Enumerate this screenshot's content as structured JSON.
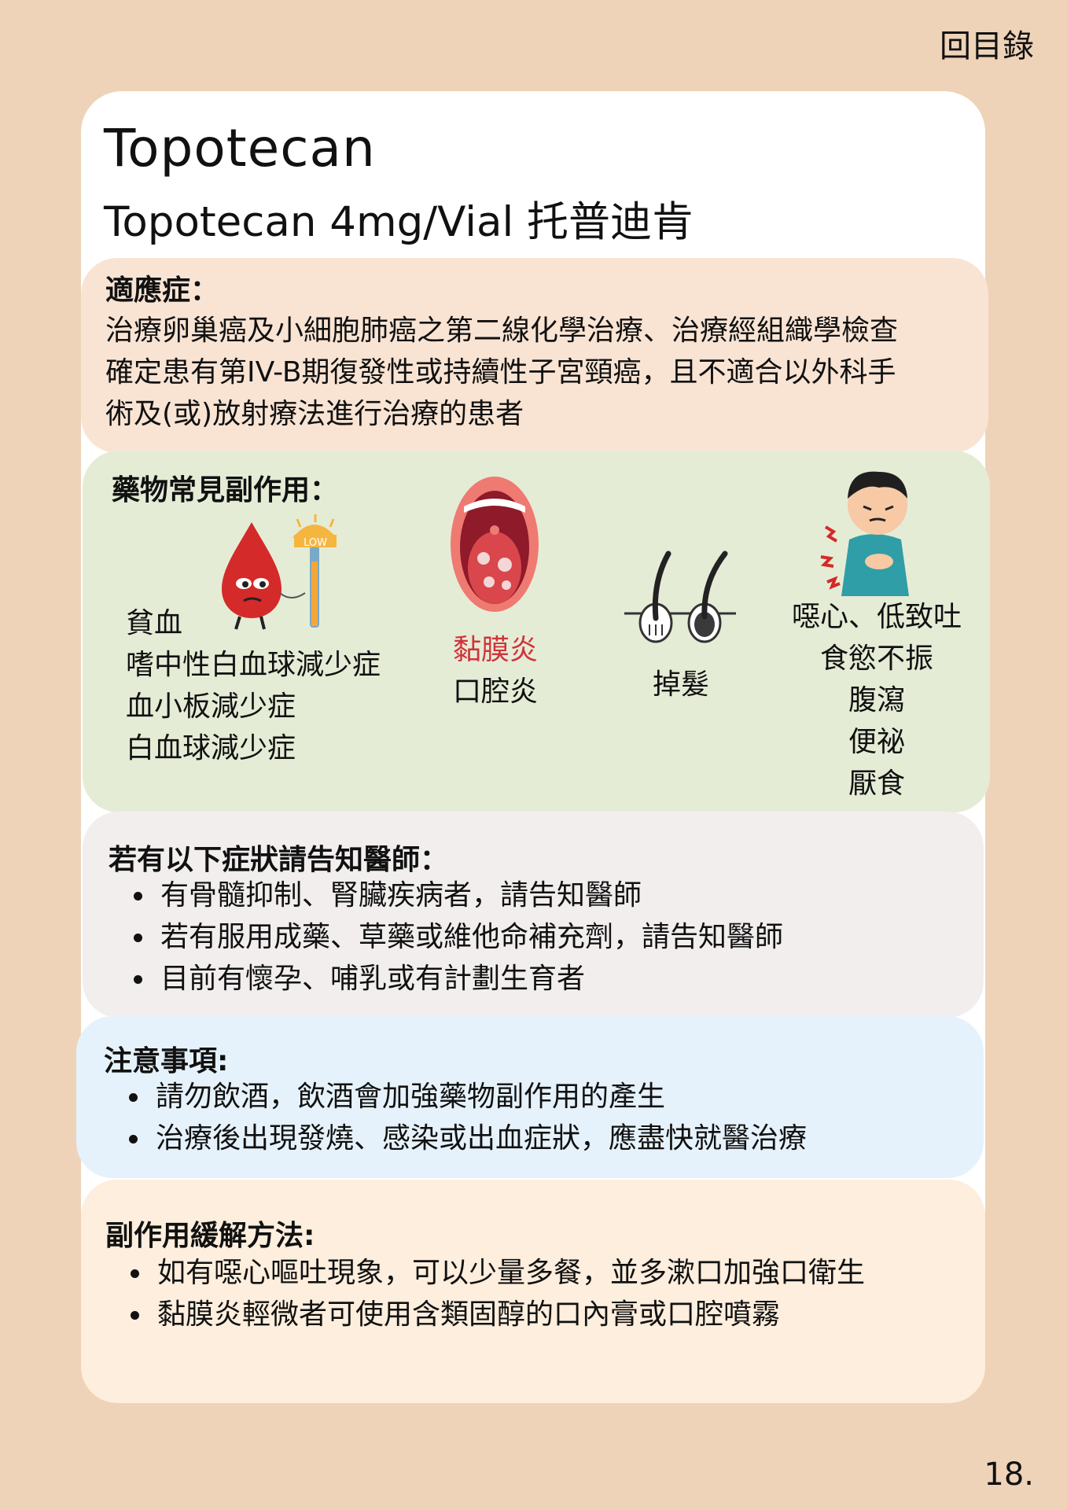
{
  "nav": {
    "toc_label": "回目錄"
  },
  "page_number": "18.",
  "drug": {
    "name": "Topotecan",
    "product": "Topotecan 4mg/Vial 托普迪肯"
  },
  "indication": {
    "heading": "適應症：",
    "lines": [
      "治療卵巢癌及小細胞肺癌之第二線化學治療、治療經組織學檢查",
      "確定患有第IV-B期復發性或持續性子宮頸癌，且不適合以外科手",
      "術及(或)放射療法進行治療的患者"
    ]
  },
  "side_effects": {
    "heading": "藥物常見副作用：",
    "blood": {
      "badge": "LOW",
      "items": [
        "貧血",
        "嗜中性白血球減少症",
        "血小板減少症",
        "白血球減少症"
      ]
    },
    "mouth": {
      "items": [
        "黏膜炎",
        "口腔炎"
      ]
    },
    "hair": {
      "items": [
        "掉髮"
      ]
    },
    "gi": {
      "items": [
        "噁心、低致吐",
        "食慾不振",
        "腹瀉",
        "便祕",
        "厭食"
      ]
    },
    "colors": {
      "highlight": "#d0333a"
    }
  },
  "tell_doctor": {
    "heading": "若有以下症狀請告知醫師：",
    "items": [
      "有骨髓抑制、腎臟疾病者，請告知醫師",
      "若有服用成藥、草藥或維他命補充劑，請告知醫師",
      "目前有懷孕、哺乳或有計劃生育者"
    ]
  },
  "precautions": {
    "heading": "注意事項:",
    "items": [
      "請勿飲酒，飲酒會加強藥物副作用的產生",
      "治療後出現發燒、感染或出血症狀，應盡快就醫治療"
    ]
  },
  "relief": {
    "heading": "副作用緩解方法:",
    "items": [
      "如有噁心嘔吐現象，可以少量多餐，並多漱口加強口衛生",
      "黏膜炎輕微者可使用含類固醇的口內膏或口腔噴霧"
    ]
  }
}
